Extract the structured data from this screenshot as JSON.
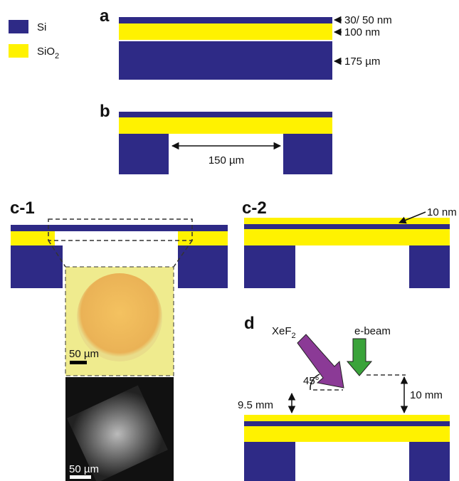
{
  "legend": {
    "si": "Si",
    "sio2": {
      "text": "SiO",
      "sub": "2"
    }
  },
  "panel_a": {
    "label": "a",
    "layers": [
      "30/ 50 nm",
      "100 nm",
      "175 µm"
    ]
  },
  "panel_b": {
    "label": "b",
    "gap": "150 µm"
  },
  "panel_c1": {
    "label": "c-1",
    "scale_bars": [
      "50 µm",
      "50 µm"
    ]
  },
  "panel_c2": {
    "label": "c-2",
    "layer": "10 nm"
  },
  "panel_d": {
    "label": "d",
    "gas": {
      "text": "XeF",
      "sub": "2"
    },
    "beam": "e-beam",
    "angle": "45°",
    "distances": [
      "9.5 mm",
      "10 mm"
    ]
  }
}
